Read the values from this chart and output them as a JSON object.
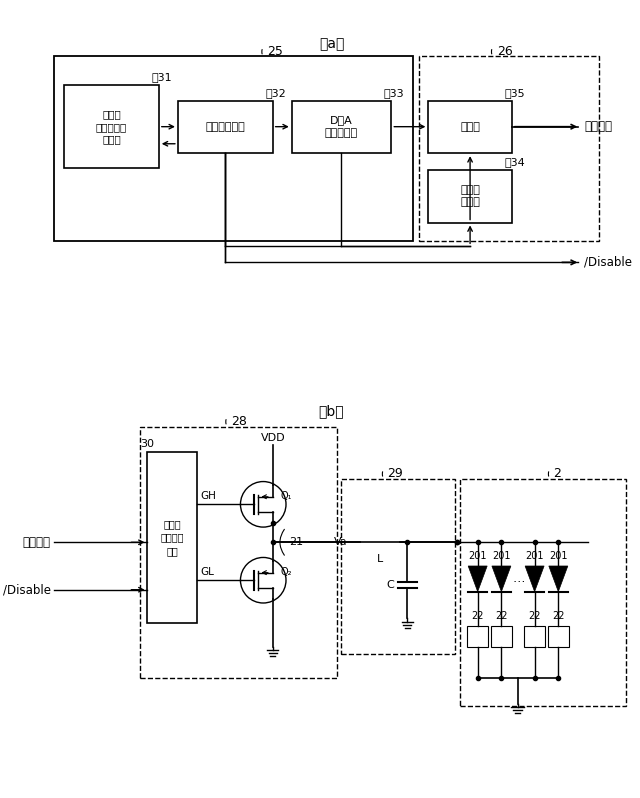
{
  "bg_color": "#ffffff",
  "title_a": "（a）",
  "title_b": "（b）",
  "label_25": "25",
  "label_26": "26",
  "label_31": "～31",
  "label_32": "～32",
  "label_33": "～33",
  "label_34": "～34",
  "label_35": "～35",
  "label_28": "28",
  "label_29": "29",
  "label_30": "30",
  "label_21": "21",
  "label_2": "2",
  "text_memory": "メモリ\n（駆動波形\nデータ",
  "text_controller": "コントローラ",
  "text_da": "D／A\nコンバータ",
  "text_comparator": "比較器",
  "text_triangle": "三角波\n発振器",
  "text_modulation": "変調信号",
  "text_disable": "/Disable",
  "text_gate": "ゲート\nドライブ\n回路",
  "text_vdd": "VDD",
  "text_va": "Va",
  "text_l": "L",
  "text_c": "C",
  "text_q1": "Q₁",
  "text_q2": "Q₂",
  "text_gh": "GH",
  "text_gl": "GL",
  "text_modulation_b": "変調信号",
  "text_disable_b": "/Disable",
  "text_dots": "…"
}
